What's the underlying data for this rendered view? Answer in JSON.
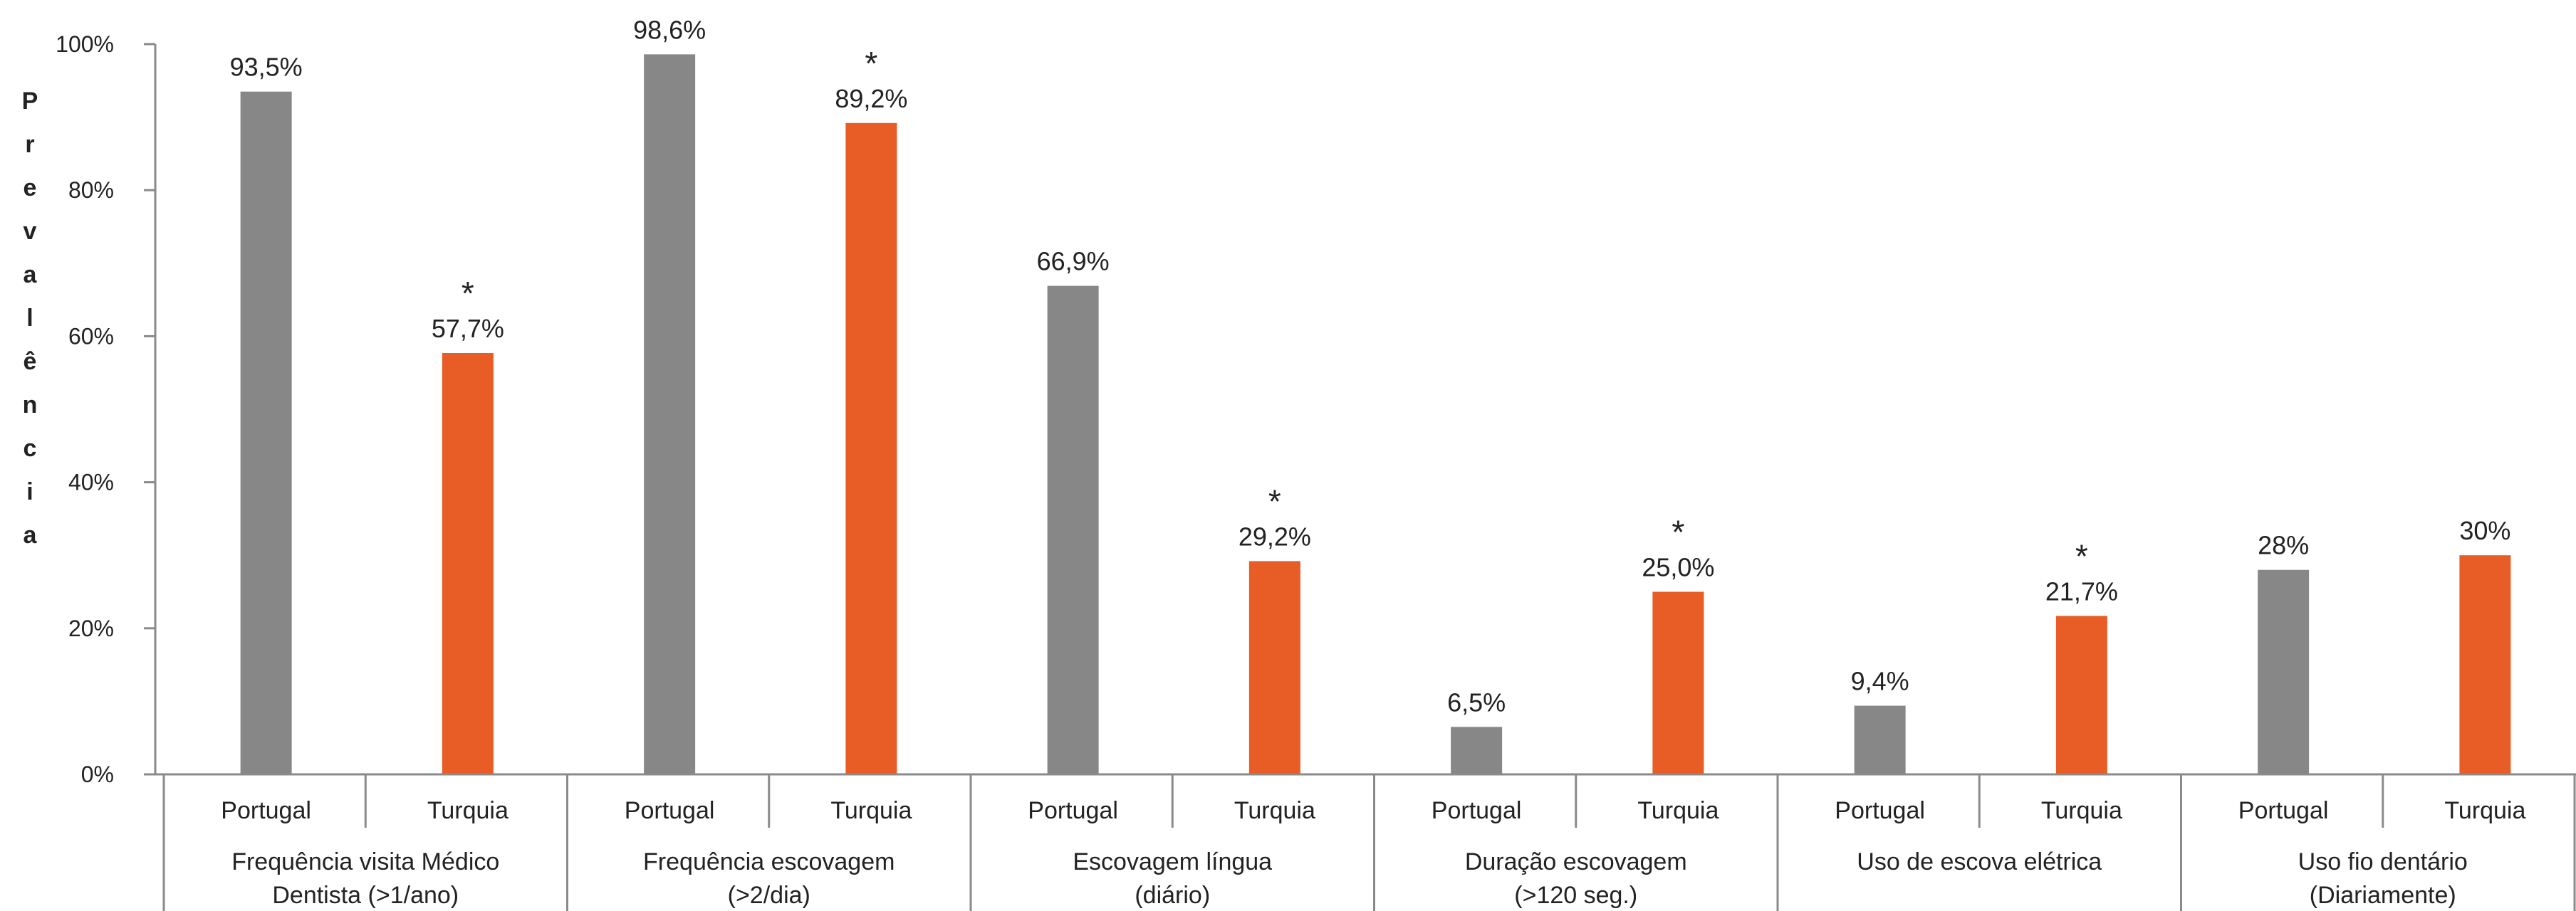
{
  "chart_data": {
    "type": "bar",
    "ylabel": "Prevalência",
    "ylim": [
      0,
      100
    ],
    "yticks": [
      "0%",
      "20%",
      "40%",
      "60%",
      "80%",
      "100%"
    ],
    "sub_categories": [
      "Portugal",
      "Turquia"
    ],
    "groups": [
      {
        "label_lines": [
          "Frequência visita Médico",
          "Dentista (>1/ano)"
        ],
        "values": [
          93.5,
          57.7
        ],
        "value_labels": [
          "93,5%",
          "57,7%"
        ],
        "significant": [
          false,
          true
        ]
      },
      {
        "label_lines": [
          "Frequência escovagem",
          "(>2/dia)"
        ],
        "values": [
          98.6,
          89.2
        ],
        "value_labels": [
          "98,6%",
          "89,2%"
        ],
        "significant": [
          false,
          true
        ]
      },
      {
        "label_lines": [
          "Escovagem língua",
          "(diário)"
        ],
        "values": [
          66.9,
          29.2
        ],
        "value_labels": [
          "66,9%",
          "29,2%"
        ],
        "significant": [
          false,
          true
        ]
      },
      {
        "label_lines": [
          "Duração escovagem",
          "(>120 seg.)"
        ],
        "values": [
          6.5,
          25.0
        ],
        "value_labels": [
          "6,5%",
          "25,0%"
        ],
        "significant": [
          false,
          true
        ]
      },
      {
        "label_lines": [
          "Uso de escova elétrica"
        ],
        "values": [
          9.4,
          21.7
        ],
        "value_labels": [
          "9,4%",
          "21,7%"
        ],
        "significant": [
          false,
          true
        ]
      },
      {
        "label_lines": [
          "Uso fio dentário",
          "(Diariamente)"
        ],
        "values": [
          28,
          30
        ],
        "value_labels": [
          "28%",
          "30%"
        ],
        "significant": [
          false,
          false
        ]
      }
    ],
    "significance_marker": "*",
    "colors": {
      "Portugal": "#878787",
      "Turquia": "#e85d26"
    },
    "grid": false
  }
}
